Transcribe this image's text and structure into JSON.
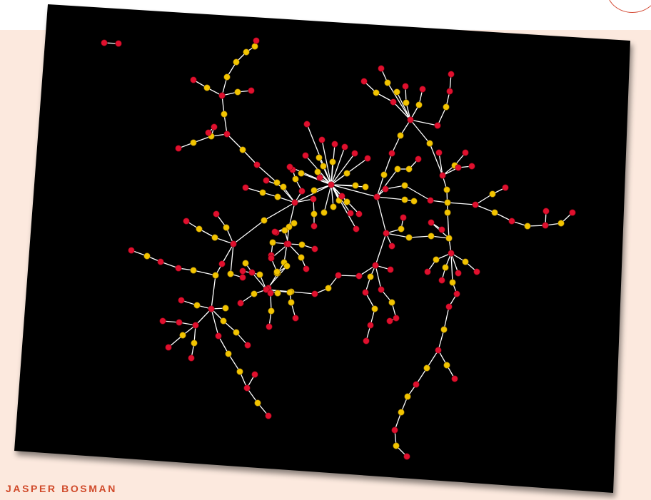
{
  "author": "JASPER BOSMAN",
  "colors": {
    "background": "#fce9de",
    "board": "#000000",
    "edge": "#ffffff",
    "node_red": "#e0102e",
    "node_yellow": "#f2c400",
    "author_text": "#d04a2a"
  }
}
